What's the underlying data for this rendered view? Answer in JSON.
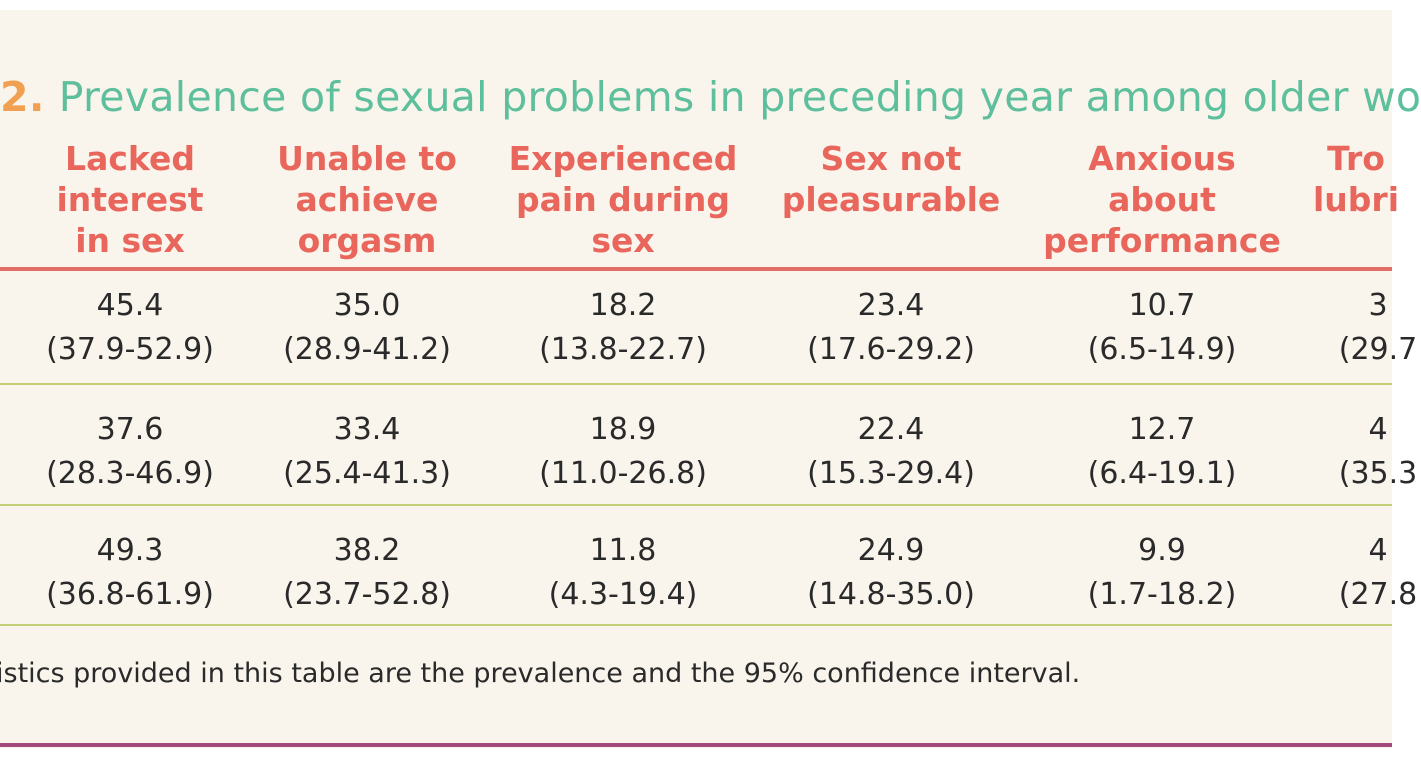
{
  "title": {
    "number": "2.",
    "text": "Prevalence of sexual problems in preceding year among older wo"
  },
  "headers": [
    "Lacked\ninterest\nin sex",
    "Unable to\nachieve\norgasm",
    "Experienced\npain during\nsex",
    "Sex not\npleasurable",
    "Anxious\nabout\nperformance",
    "Tro\nlubri"
  ],
  "rows": [
    {
      "cells": [
        {
          "value": "45.4",
          "ci": "(37.9-52.9)"
        },
        {
          "value": "35.0",
          "ci": "(28.9-41.2)"
        },
        {
          "value": "18.2",
          "ci": "(13.8-22.7)"
        },
        {
          "value": "23.4",
          "ci": "(17.6-29.2)"
        },
        {
          "value": "10.7",
          "ci": "(6.5-14.9)"
        },
        {
          "value": "3",
          "ci": "(29.7"
        }
      ]
    },
    {
      "cells": [
        {
          "value": "37.6",
          "ci": "(28.3-46.9)"
        },
        {
          "value": "33.4",
          "ci": "(25.4-41.3)"
        },
        {
          "value": "18.9",
          "ci": "(11.0-26.8)"
        },
        {
          "value": "22.4",
          "ci": "(15.3-29.4)"
        },
        {
          "value": "12.7",
          "ci": "(6.4-19.1)"
        },
        {
          "value": "4",
          "ci": "(35.3"
        }
      ]
    },
    {
      "cells": [
        {
          "value": "49.3",
          "ci": "(36.8-61.9)"
        },
        {
          "value": "38.2",
          "ci": "(23.7-52.8)"
        },
        {
          "value": "11.8",
          "ci": "(4.3-19.4)"
        },
        {
          "value": "24.9",
          "ci": "(14.8-35.0)"
        },
        {
          "value": "9.9",
          "ci": "(1.7-18.2)"
        },
        {
          "value": "4",
          "ci": "(27.8"
        }
      ]
    }
  ],
  "footnote": "istics provided in this table are the prevalence and the 95% confidence interval.",
  "colors": {
    "title": "#5ebf9c",
    "number": "#f0a050",
    "header": "#e8665c",
    "rule_head": "#e26c67",
    "rule_row": "#c4d078",
    "rule_bottom": "#a34a7c"
  }
}
